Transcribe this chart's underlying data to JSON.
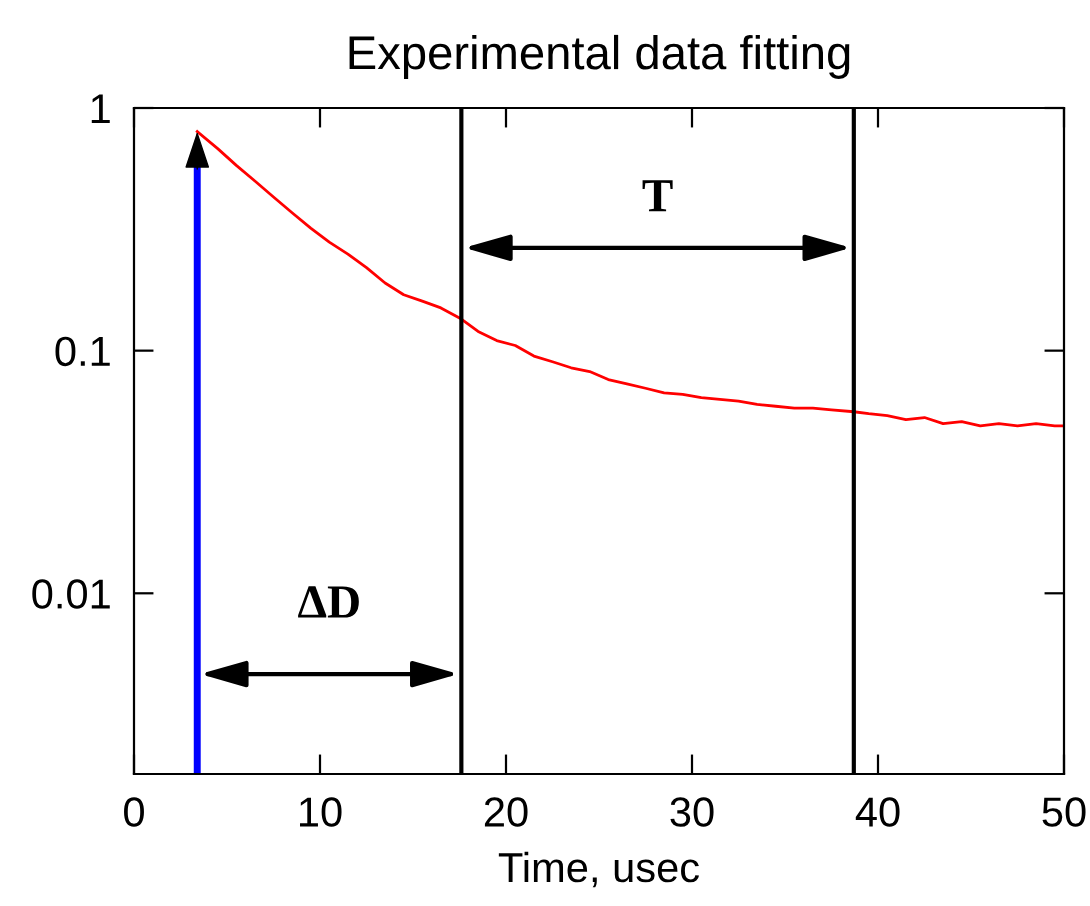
{
  "chart_data": {
    "type": "line",
    "title": "Experimental data fitting",
    "xlabel": "Time, usec",
    "series": [
      {
        "color": "#ff0000",
        "x": [
          3.4,
          4.5,
          5.5,
          6.5,
          7.5,
          8.5,
          9.5,
          10.5,
          11.5,
          12.5,
          13.5,
          14.5,
          15.5,
          16.5,
          17.6,
          18.5,
          19.5,
          20.5,
          21.5,
          22.5,
          23.5,
          24.5,
          25.5,
          26.5,
          27.5,
          28.5,
          29.5,
          30.5,
          31.5,
          32.5,
          33.5,
          34.5,
          35.5,
          36.5,
          37.5,
          38.7,
          39.5,
          40.5,
          41.5,
          42.5,
          43.5,
          44.5,
          45.5,
          46.5,
          47.5,
          48.5,
          49.5,
          50
        ],
        "values": [
          0.8,
          0.68,
          0.58,
          0.5,
          0.43,
          0.37,
          0.32,
          0.28,
          0.25,
          0.22,
          0.19,
          0.17,
          0.16,
          0.15,
          0.135,
          0.12,
          0.11,
          0.105,
          0.095,
          0.09,
          0.085,
          0.082,
          0.076,
          0.073,
          0.07,
          0.067,
          0.066,
          0.064,
          0.063,
          0.062,
          0.06,
          0.059,
          0.058,
          0.058,
          0.057,
          0.056,
          0.055,
          0.054,
          0.052,
          0.053,
          0.05,
          0.051,
          0.049,
          0.05,
          0.049,
          0.05,
          0.049,
          0.049
        ]
      }
    ],
    "xlim": [
      0,
      50
    ],
    "xticks": [
      0,
      10,
      20,
      30,
      40,
      50
    ],
    "ylim": [
      0.0018,
      1
    ],
    "yticks": [
      0.01,
      0.1,
      1
    ],
    "log": "y",
    "grid": false,
    "legend": false,
    "line_style": "solid",
    "ref_lines": [
      {
        "axis": "x",
        "value": 3.4,
        "color": "#0000ff"
      },
      {
        "axis": "x",
        "value": 17.6,
        "color": "#000000"
      },
      {
        "axis": "x",
        "value": 38.7,
        "color": "#000000"
      }
    ],
    "annotations": [
      "ΔD",
      "T"
    ]
  }
}
